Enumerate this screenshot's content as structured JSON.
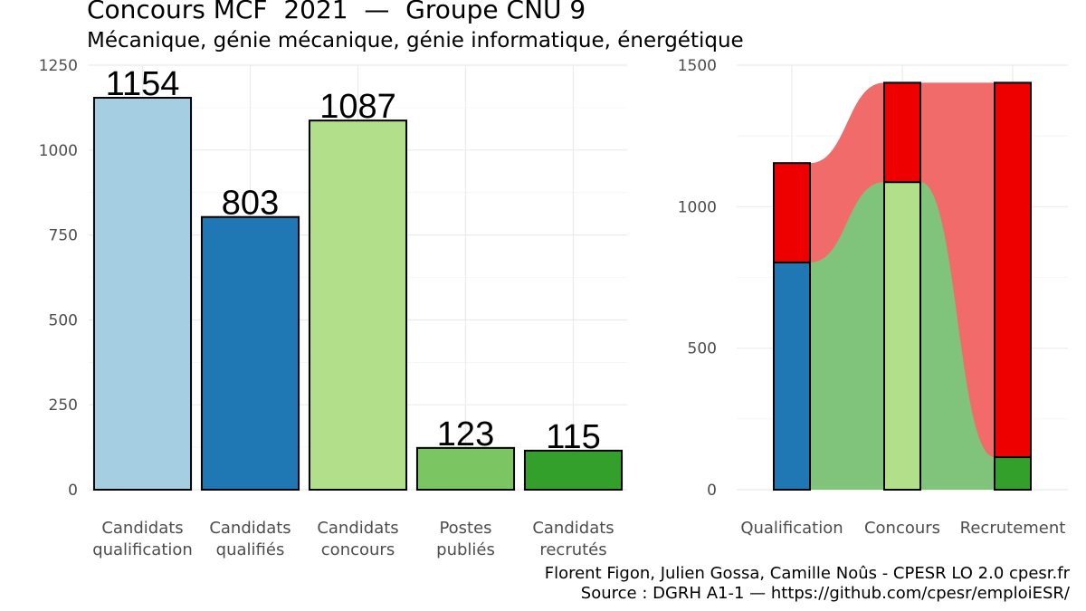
{
  "title": "Concours MCF  2021  —  Groupe CNU 9",
  "subtitle": "Mécanique, génie mécanique, génie informatique, énergétique",
  "credits": {
    "authors": "Florent Figon, Julien Gossa, Camille Noûs - CPESR LO 2.0 cpesr.fr",
    "source": "Source : DGRH A1-1 — https://github.com/cpesr/emploiESR/"
  },
  "chart_data": [
    {
      "type": "bar",
      "categories": [
        [
          "Candidats",
          "qualification"
        ],
        [
          "Candidats",
          "qualifiés"
        ],
        [
          "Candidats",
          "concours"
        ],
        [
          "Postes",
          "publiés"
        ],
        [
          "Candidats",
          "recrutés"
        ]
      ],
      "values": [
        1154,
        803,
        1087,
        123,
        115
      ],
      "data_labels": [
        "1154",
        "803",
        "1087",
        "123",
        "115"
      ],
      "colors": [
        "#a6cee3",
        "#1f78b4",
        "#b2df8a",
        "#7bc562",
        "#33a02c"
      ],
      "ylim": [
        0,
        1250
      ],
      "yticks": [
        0,
        250,
        500,
        750,
        1000,
        1250
      ],
      "grid": true
    },
    {
      "type": "bar",
      "stacked": true,
      "categories": [
        "Qualification",
        "Concours",
        "Recrutement"
      ],
      "ylim": [
        0,
        1500
      ],
      "yticks": [
        0,
        500,
        1000,
        1500
      ],
      "grid": true,
      "stacks": [
        {
          "segments": [
            {
              "value": 803,
              "color": "#1f78b4"
            },
            {
              "value": 351,
              "color": "#ee0000"
            }
          ]
        },
        {
          "segments": [
            {
              "value": 1087,
              "color": "#b2df8a"
            },
            {
              "value": 351,
              "color": "#ee0000"
            }
          ]
        },
        {
          "segments": [
            {
              "value": 115,
              "color": "#33a02c"
            },
            {
              "value": 1323,
              "color": "#ee0000"
            }
          ]
        }
      ],
      "flows": [
        {
          "values": [
            803,
            1087,
            115
          ],
          "color": "#7fc47a"
        },
        {
          "values": [
            1154,
            1438,
            1438
          ],
          "color": "#f26b6b"
        }
      ]
    }
  ]
}
